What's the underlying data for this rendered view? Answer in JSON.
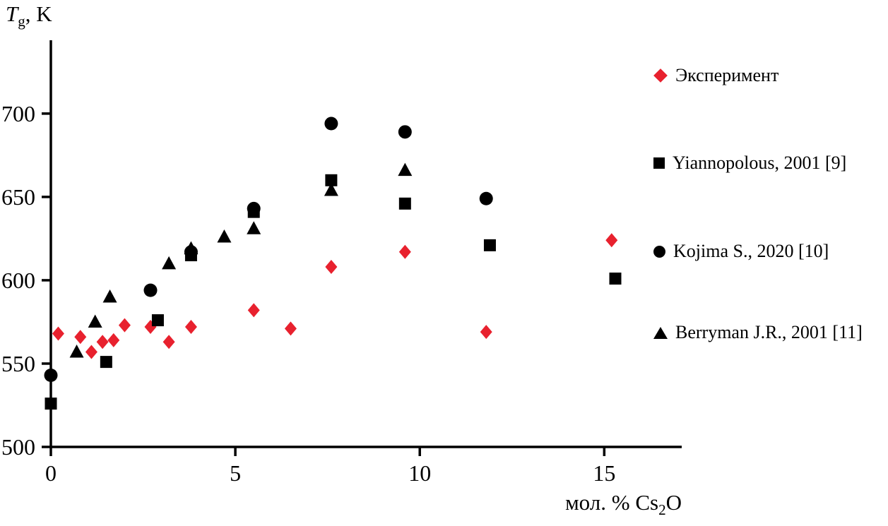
{
  "figure": {
    "background": "#ffffff",
    "y_axis_title": {
      "main": "T",
      "sub": "g",
      "rest": ", K"
    },
    "x_axis_title": {
      "main": "мол. % Cs",
      "sub": "2",
      "rest": "O"
    }
  },
  "colors": {
    "accent": "#e8212e",
    "black": "#000000"
  },
  "chart_data": {
    "type": "scatter",
    "title": "",
    "xlabel": "мол. % Cs2O",
    "ylabel": "Tg, K",
    "xlim": [
      0,
      17.1
    ],
    "ylim": [
      500,
      744
    ],
    "xticks": [
      0,
      5,
      10,
      15
    ],
    "yticks": [
      500,
      550,
      600,
      650,
      700
    ],
    "grid": false,
    "legend_position": "right-outside",
    "series": [
      {
        "name": "Эксперимент",
        "marker": "diamond",
        "color": "#e8212e",
        "points": [
          [
            0.2,
            568
          ],
          [
            0.8,
            566
          ],
          [
            1.1,
            557
          ],
          [
            1.4,
            563
          ],
          [
            1.7,
            564
          ],
          [
            2.0,
            573
          ],
          [
            2.7,
            572
          ],
          [
            3.2,
            563
          ],
          [
            3.8,
            572
          ],
          [
            5.5,
            582
          ],
          [
            6.5,
            571
          ],
          [
            7.6,
            608
          ],
          [
            9.6,
            617
          ],
          [
            11.8,
            569
          ],
          [
            15.2,
            624
          ]
        ]
      },
      {
        "name": "Yiannopolous, 2001 [9]",
        "marker": "square",
        "color": "#000000",
        "points": [
          [
            0,
            526
          ],
          [
            1.5,
            551
          ],
          [
            2.9,
            576
          ],
          [
            3.8,
            615
          ],
          [
            5.5,
            641
          ],
          [
            7.6,
            660
          ],
          [
            9.6,
            646
          ],
          [
            11.9,
            621
          ],
          [
            15.3,
            601
          ]
        ]
      },
      {
        "name": "Kojima S., 2020 [10]",
        "marker": "circle",
        "color": "#000000",
        "points": [
          [
            0,
            543
          ],
          [
            2.7,
            594
          ],
          [
            3.8,
            617
          ],
          [
            5.5,
            643
          ],
          [
            7.6,
            694
          ],
          [
            9.6,
            689
          ],
          [
            11.8,
            649
          ]
        ]
      },
      {
        "name": "Berryman J.R., 2001 [11]",
        "marker": "triangle",
        "color": "#000000",
        "points": [
          [
            0.7,
            557
          ],
          [
            1.2,
            575
          ],
          [
            1.6,
            590
          ],
          [
            3.2,
            610
          ],
          [
            3.8,
            619
          ],
          [
            4.7,
            626
          ],
          [
            5.5,
            631
          ],
          [
            7.6,
            654
          ],
          [
            9.6,
            666
          ]
        ]
      }
    ]
  }
}
